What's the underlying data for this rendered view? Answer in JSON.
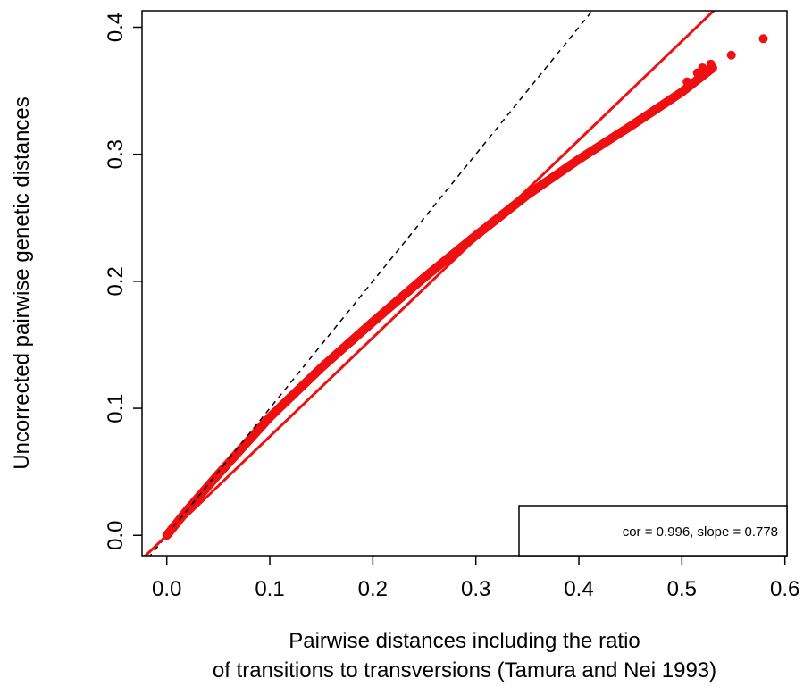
{
  "chart_data": {
    "type": "scatter",
    "xlabel_line1": "Pairwise distances including the ratio",
    "xlabel_line2": "of transitions to transversions (Tamura and Nei 1993)",
    "ylabel": "Uncorrected pairwise genetic distances",
    "xlim": [
      -0.024,
      0.602
    ],
    "ylim": [
      -0.016,
      0.413
    ],
    "x_ticks": [
      0.0,
      0.1,
      0.2,
      0.3,
      0.4,
      0.5,
      0.6
    ],
    "x_tick_labels": [
      "0.0",
      "0.1",
      "0.2",
      "0.3",
      "0.4",
      "0.5",
      "0.6"
    ],
    "y_ticks": [
      0.0,
      0.1,
      0.2,
      0.3,
      0.4
    ],
    "y_tick_labels": [
      "0.0",
      "0.1",
      "0.2",
      "0.3",
      "0.4"
    ],
    "grid": false,
    "point_color": "#ee1111",
    "curve_x": [
      0.0,
      0.02,
      0.05,
      0.1,
      0.15,
      0.2,
      0.25,
      0.3,
      0.35,
      0.4,
      0.45,
      0.5,
      0.53
    ],
    "curve_y": [
      0.0,
      0.02,
      0.048,
      0.093,
      0.132,
      0.168,
      0.203,
      0.236,
      0.268,
      0.296,
      0.322,
      0.349,
      0.368
    ],
    "outliers": [
      {
        "x": 0.505,
        "y": 0.357
      },
      {
        "x": 0.515,
        "y": 0.364
      },
      {
        "x": 0.52,
        "y": 0.368
      },
      {
        "x": 0.528,
        "y": 0.371
      },
      {
        "x": 0.548,
        "y": 0.378
      },
      {
        "x": 0.579,
        "y": 0.391
      }
    ],
    "identity_line": {
      "slope": 1,
      "intercept": 0,
      "style": "dashed",
      "color": "#000000"
    },
    "regression_line": {
      "slope": 0.778,
      "intercept": 0.0,
      "color": "#ee1111"
    },
    "legend": {
      "text": "cor = 0.996, slope = 0.778",
      "position": "bottom-right"
    }
  }
}
